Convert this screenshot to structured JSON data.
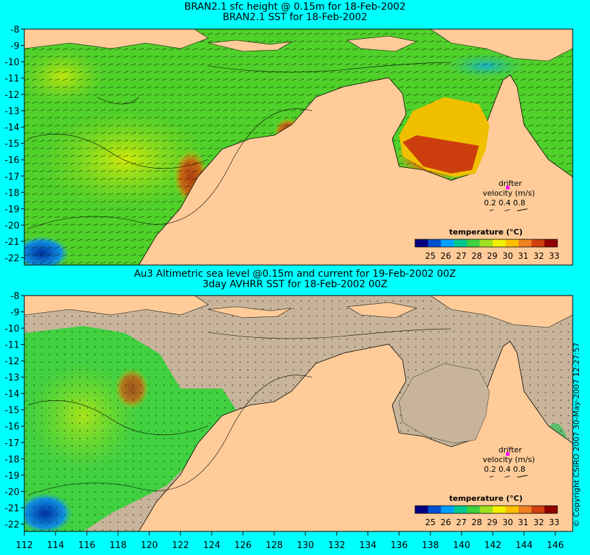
{
  "colors": {
    "background": "#00ffff",
    "land": "#ffcc99",
    "no_data": "#c8b49a",
    "warm": "#d22d10",
    "mid": "#66dd22",
    "cool": "#0033aa"
  },
  "top_panel": {
    "title_line1": "BRAN2.1 sfc height @ 0.15m for 18-Feb-2002",
    "title_line2": "BRAN2.1 SST for 18-Feb-2002",
    "drifter_label": "drifter",
    "velocity_label": "velocity (m/s)",
    "velocity_values": "0.2 0.4 0.8",
    "legend_title": "temperature (°C)",
    "legend_ticks": [
      "25",
      "26",
      "27",
      "28",
      "29",
      "30",
      "31",
      "32",
      "33"
    ]
  },
  "bottom_panel": {
    "title_line1": "Au3 Altimetric sea level  @0.15m and current for 19-Feb-2002 00Z",
    "title_line2": "3day AVHRR SST for 18-Feb-2002 00Z",
    "drifter_label": "drifter",
    "velocity_label": "velocity (m/s)",
    "velocity_values": "0.2 0.4 0.8",
    "legend_title": "temperature (°C)",
    "legend_ticks": [
      "25",
      "26",
      "27",
      "28",
      "29",
      "30",
      "31",
      "32",
      "33"
    ]
  },
  "axes": {
    "lat_ticks": [
      "-8",
      "-9",
      "-10",
      "-11",
      "-12",
      "-13",
      "-14",
      "-15",
      "-16",
      "-17",
      "-18",
      "-19",
      "-20",
      "-21",
      "-22"
    ],
    "lon_ticks": [
      "112",
      "114",
      "116",
      "118",
      "120",
      "122",
      "124",
      "126",
      "128",
      "130",
      "132",
      "134",
      "136",
      "138",
      "140",
      "142",
      "144",
      "146"
    ]
  },
  "copyright": "© Copyright CSIRO 2007  30-May-2007 12:27:57",
  "legend_colors": [
    "#000080",
    "#0050d0",
    "#00a0ff",
    "#00c890",
    "#40d040",
    "#a0e020",
    "#f0f000",
    "#ffc000",
    "#f08020",
    "#d04010",
    "#900000"
  ]
}
